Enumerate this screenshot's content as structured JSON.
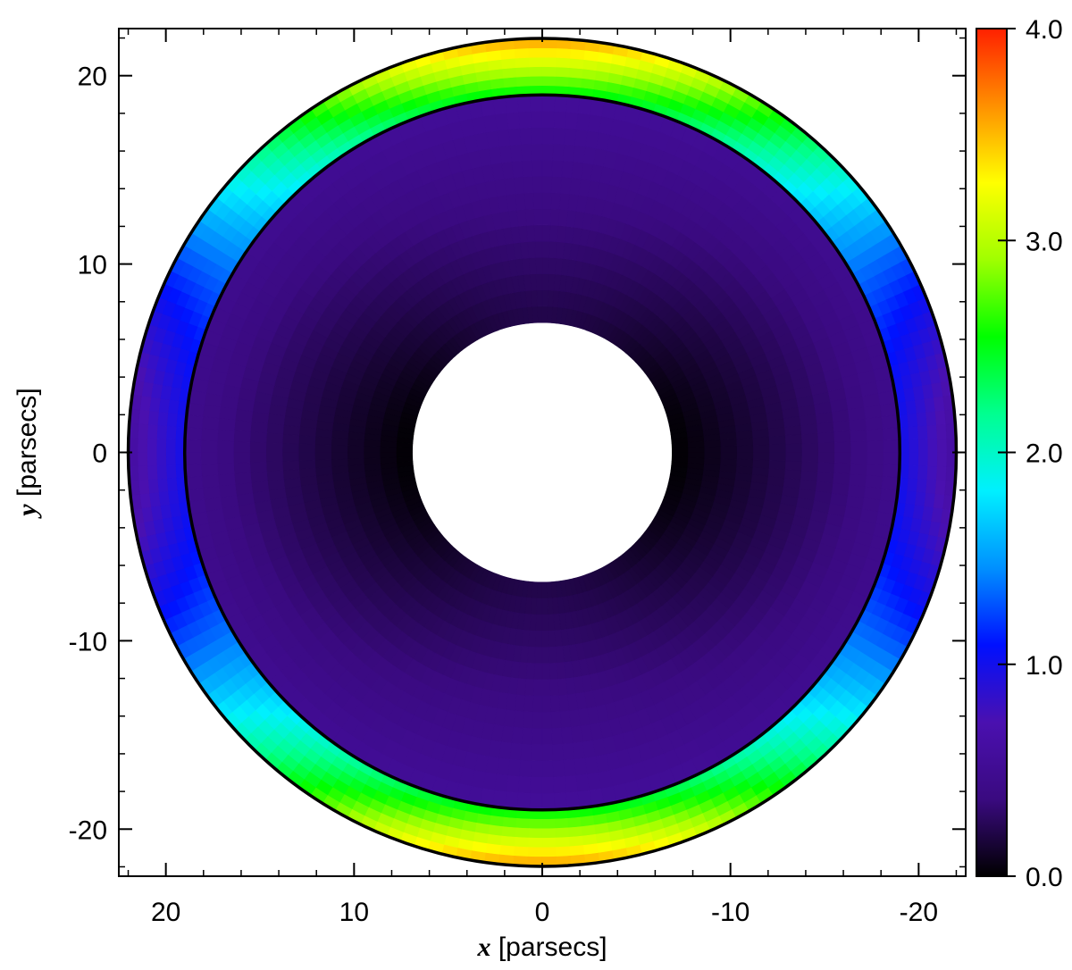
{
  "chart_data": {
    "type": "shell-map",
    "xlabel": {
      "symbol": "x",
      "text": "[parsecs]"
    },
    "ylabel": {
      "symbol": "y",
      "text": "[parsecs]"
    },
    "xlim": [
      22.5,
      -22.5
    ],
    "ylim": [
      -22.5,
      22.5
    ],
    "xticks": [
      20,
      10,
      0,
      -10,
      -20
    ],
    "yticks": [
      -20,
      -10,
      0,
      10,
      20
    ],
    "clim": [
      0,
      4
    ],
    "cticks": [
      {
        "value": 0,
        "label": "0.0"
      },
      {
        "value": 1,
        "label": "1.0"
      },
      {
        "value": 2,
        "label": "2.0"
      },
      {
        "value": 3,
        "label": "3.0"
      },
      {
        "value": 4,
        "label": "4.0"
      }
    ],
    "colormap": [
      "#000000",
      "#3a0a80",
      "#4a10b0",
      "#0010ff",
      "#0090ff",
      "#00f0ff",
      "#00ff90",
      "#00ff00",
      "#a0ff00",
      "#ffff00",
      "#ff9000",
      "#ff2000"
    ],
    "shells": [
      {
        "r_inner": 19,
        "r_outer": 22,
        "pole_inner": 2.5,
        "pole_outer": 3.6,
        "equator_inner": 1.0,
        "equator_outer": 0.6
      },
      {
        "r_inner": 6.9,
        "r_outer": 19,
        "pole_inner": 0.2,
        "pole_outer": 0.55,
        "equator_inner": 0.0,
        "equator_outer": 0.45
      }
    ]
  }
}
